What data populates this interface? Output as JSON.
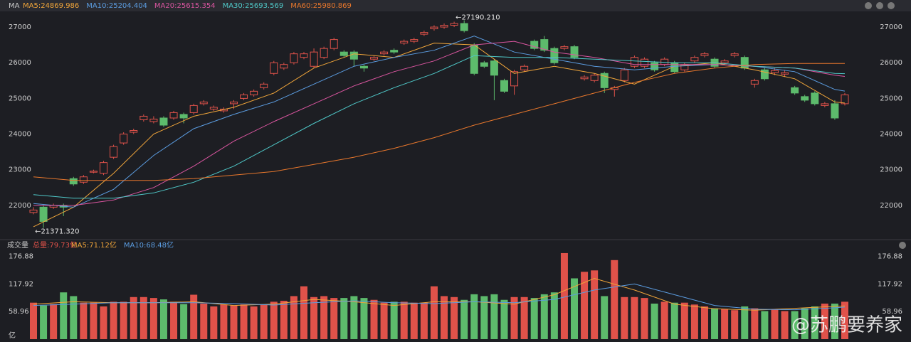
{
  "chart_data": [
    {
      "type": "candlestick",
      "header": "MA",
      "categories": [
        null,
        null,
        null,
        null,
        null,
        null,
        null,
        null,
        null,
        null,
        null,
        null,
        null,
        null,
        null,
        null,
        null,
        null,
        null,
        null,
        null,
        null,
        null,
        null,
        null,
        null,
        null,
        null,
        null,
        null,
        null,
        null,
        null,
        null,
        null,
        null,
        null,
        null,
        null,
        null,
        null,
        null,
        null,
        null,
        null,
        null,
        null,
        null,
        null,
        null,
        null,
        null,
        null,
        null,
        null,
        null,
        null,
        null,
        null,
        null,
        null,
        null,
        null,
        null,
        null,
        null,
        null,
        null,
        null,
        null,
        null,
        null,
        null,
        null,
        null,
        null,
        null,
        null,
        null,
        null,
        null,
        null
      ],
      "open": [
        21800,
        21950,
        21950,
        22000,
        22750,
        22650,
        22930,
        22900,
        23350,
        23750,
        24050,
        24400,
        24350,
        24450,
        24450,
        24550,
        24600,
        24850,
        24700,
        24650,
        24850,
        25000,
        25100,
        25300,
        25700,
        25850,
        26000,
        26150,
        25900,
        26150,
        26400,
        26300,
        26300,
        25900,
        26100,
        26250,
        26350,
        26550,
        26600,
        26800,
        26950,
        27000,
        27050,
        27100,
        26500,
        26000,
        26050,
        25500,
        25350,
        25800,
        26600,
        26650,
        26400,
        26400,
        26450,
        25550,
        25500,
        25700,
        25250,
        25500,
        25900,
        25900,
        26000,
        25950,
        26000,
        25800,
        26050,
        26200,
        26100,
        26000,
        26200,
        26150,
        25400,
        25800,
        25720,
        25680,
        25300,
        25050,
        25150,
        24800,
        24850,
        24850
      ],
      "high": [
        21950,
        22000,
        22050,
        22050,
        22800,
        22850,
        23000,
        23250,
        23700,
        24050,
        24150,
        24550,
        24500,
        24500,
        24650,
        24600,
        24850,
        24950,
        24800,
        24750,
        24950,
        25150,
        25250,
        25450,
        26050,
        26000,
        26300,
        26300,
        26400,
        26450,
        26700,
        26350,
        26350,
        25950,
        26200,
        26350,
        26400,
        26650,
        26700,
        26900,
        27050,
        27100,
        27150,
        27190.21,
        26550,
        26050,
        26100,
        25550,
        25800,
        25950,
        26650,
        26750,
        26450,
        26500,
        26500,
        25650,
        25700,
        25750,
        25350,
        25850,
        26200,
        26150,
        26050,
        26150,
        26050,
        26000,
        26200,
        26300,
        26150,
        26100,
        26300,
        26200,
        25550,
        25850,
        25850,
        25800,
        25350,
        25100,
        25200,
        24900,
        24950,
        25150
      ],
      "low": [
        21750,
        21371.32,
        21900,
        21700,
        22550,
        22600,
        22900,
        22850,
        23300,
        23700,
        24000,
        24350,
        24300,
        24200,
        24400,
        24300,
        24550,
        24800,
        24650,
        24600,
        24700,
        24950,
        25050,
        25250,
        25650,
        25800,
        25950,
        26100,
        25850,
        26100,
        26350,
        26150,
        25900,
        25750,
        26050,
        26200,
        26250,
        26500,
        26550,
        26750,
        26900,
        26950,
        27000,
        26850,
        25650,
        25850,
        24950,
        25150,
        25100,
        25750,
        26350,
        26300,
        25950,
        26350,
        26100,
        25500,
        25450,
        25150,
        25050,
        25450,
        25850,
        25850,
        25750,
        25900,
        25700,
        25750,
        26000,
        26150,
        25850,
        25950,
        26150,
        25800,
        25300,
        25500,
        25650,
        25600,
        25100,
        24900,
        24800,
        24750,
        24400,
        24800
      ],
      "close": [
        21870,
        21550,
        22000,
        21950,
        22600,
        22800,
        22960,
        23200,
        23650,
        24000,
        24100,
        24500,
        24420,
        24250,
        24600,
        24450,
        24800,
        24900,
        24750,
        24700,
        24900,
        25100,
        25200,
        25400,
        26000,
        25950,
        26250,
        26250,
        26300,
        26400,
        26650,
        26200,
        26100,
        25850,
        26150,
        26300,
        26300,
        26600,
        26650,
        26850,
        27000,
        27050,
        27100,
        26900,
        25700,
        25900,
        25650,
        25200,
        25750,
        25900,
        26400,
        26350,
        26000,
        26450,
        26150,
        25600,
        25650,
        25300,
        25300,
        25800,
        26150,
        26100,
        25800,
        26100,
        25750,
        25950,
        26150,
        26250,
        25900,
        26050,
        26250,
        25850,
        25500,
        25550,
        25780,
        25720,
        25150,
        24950,
        24850,
        24850,
        24450,
        25100
      ],
      "up_color": "#e0524a",
      "down_color": "#5dbb6c",
      "series": [
        {
          "name": "MA5:24869.986",
          "color": "#f0a53a",
          "x": [
            0,
            4,
            8,
            12,
            16,
            20,
            24,
            28,
            32,
            36,
            40,
            44,
            48,
            52,
            56,
            60,
            64,
            68,
            72,
            76,
            80,
            81
          ],
          "values": [
            21400,
            21950,
            22900,
            24000,
            24500,
            24750,
            25150,
            25850,
            26250,
            26150,
            26550,
            26500,
            25700,
            25900,
            25700,
            25400,
            25900,
            26000,
            25800,
            25550,
            24900,
            24869.986
          ]
        },
        {
          "name": "MA10:25204.404",
          "color": "#5b9ce0",
          "x": [
            0,
            4,
            8,
            12,
            16,
            20,
            24,
            28,
            32,
            36,
            40,
            44,
            48,
            52,
            56,
            60,
            64,
            68,
            72,
            76,
            80,
            81
          ],
          "values": [
            22050,
            21950,
            22450,
            23400,
            24150,
            24550,
            24900,
            25400,
            25900,
            26150,
            26350,
            26750,
            26300,
            26100,
            25900,
            25800,
            25900,
            25950,
            25900,
            25750,
            25250,
            25204.404
          ]
        },
        {
          "name": "MA20:25615.354",
          "color": "#d9559f",
          "x": [
            0,
            4,
            8,
            12,
            16,
            20,
            24,
            28,
            32,
            36,
            40,
            44,
            48,
            52,
            56,
            60,
            64,
            68,
            72,
            76,
            80,
            81
          ],
          "values": [
            22000,
            22000,
            22150,
            22500,
            23100,
            23800,
            24350,
            24850,
            25350,
            25750,
            26050,
            26500,
            26600,
            26300,
            26150,
            25950,
            25950,
            25950,
            25900,
            25850,
            25650,
            25615.354
          ]
        },
        {
          "name": "MA30:25693.569",
          "color": "#4fc8c8",
          "x": [
            0,
            4,
            8,
            12,
            16,
            20,
            24,
            28,
            32,
            36,
            40,
            44,
            48,
            52,
            56,
            60,
            64,
            68,
            72,
            76,
            80,
            81
          ],
          "values": [
            22300,
            22200,
            22200,
            22350,
            22650,
            23100,
            23700,
            24300,
            24850,
            25300,
            25700,
            26200,
            26150,
            26150,
            26100,
            26050,
            26000,
            26000,
            25900,
            25850,
            25700,
            25693.569
          ]
        },
        {
          "name": "MA60:25980.869",
          "color": "#e8772c",
          "x": [
            0,
            4,
            8,
            12,
            16,
            20,
            24,
            28,
            32,
            36,
            40,
            44,
            48,
            52,
            56,
            60,
            64,
            68,
            72,
            76,
            80,
            81
          ],
          "values": [
            22800,
            22700,
            22700,
            22700,
            22750,
            22850,
            22950,
            23150,
            23350,
            23600,
            23900,
            24250,
            24550,
            24850,
            25150,
            25450,
            25700,
            25850,
            25950,
            25980,
            25980,
            25980.869
          ]
        }
      ],
      "annotations": [
        {
          "text": "←27190.210",
          "index": 43,
          "value": 27190.21
        },
        {
          "text": "←21371.320",
          "index": 1,
          "value": 21371.32
        }
      ],
      "ylim": [
        21080,
        27360
      ],
      "yticks": [
        22000,
        23000,
        24000,
        25000,
        26000,
        27000
      ],
      "grid": false
    },
    {
      "type": "bar",
      "header": "成交量",
      "total": "总量:79.73亿",
      "unit": "亿",
      "values": [
        78,
        72,
        75,
        100,
        92,
        78,
        78,
        70,
        80,
        80,
        90,
        90,
        88,
        85,
        80,
        75,
        95,
        76,
        70,
        74,
        72,
        74,
        70,
        74,
        80,
        82,
        92,
        113,
        90,
        92,
        88,
        88,
        92,
        88,
        84,
        78,
        80,
        80,
        78,
        78,
        113,
        92,
        90,
        84,
        96,
        92,
        96,
        84,
        90,
        90,
        88,
        96,
        100,
        184,
        130,
        144,
        147,
        92,
        169,
        90,
        90,
        88,
        76,
        80,
        78,
        78,
        74,
        70,
        66,
        64,
        62,
        70,
        66,
        60,
        64,
        60,
        60,
        66,
        70,
        76,
        76,
        80
      ],
      "series": [
        {
          "name": "MA5:71.12亿",
          "color": "#f0a53a",
          "x": [
            0,
            4,
            8,
            12,
            16,
            20,
            24,
            28,
            32,
            36,
            40,
            44,
            48,
            52,
            56,
            60,
            64,
            68,
            72,
            76,
            80,
            81
          ],
          "values": [
            75,
            80,
            78,
            78,
            80,
            72,
            75,
            85,
            80,
            72,
            80,
            80,
            75,
            95,
            130,
            105,
            75,
            65,
            62,
            66,
            70,
            71.12
          ]
        },
        {
          "name": "MA10:68.48亿",
          "color": "#5b9ce0",
          "x": [
            0,
            4,
            8,
            12,
            16,
            20,
            24,
            28,
            32,
            36,
            40,
            44,
            48,
            52,
            56,
            60,
            64,
            68,
            72,
            76,
            80,
            81
          ],
          "values": [
            72,
            75,
            78,
            78,
            78,
            76,
            73,
            78,
            82,
            78,
            76,
            80,
            78,
            85,
            105,
            118,
            95,
            72,
            64,
            63,
            67,
            68.48
          ]
        }
      ],
      "ylim": [
        0,
        190
      ],
      "yticks": [
        58.96,
        117.92,
        176.88
      ],
      "grid": false
    }
  ],
  "watermark": "@苏鹏要养家"
}
